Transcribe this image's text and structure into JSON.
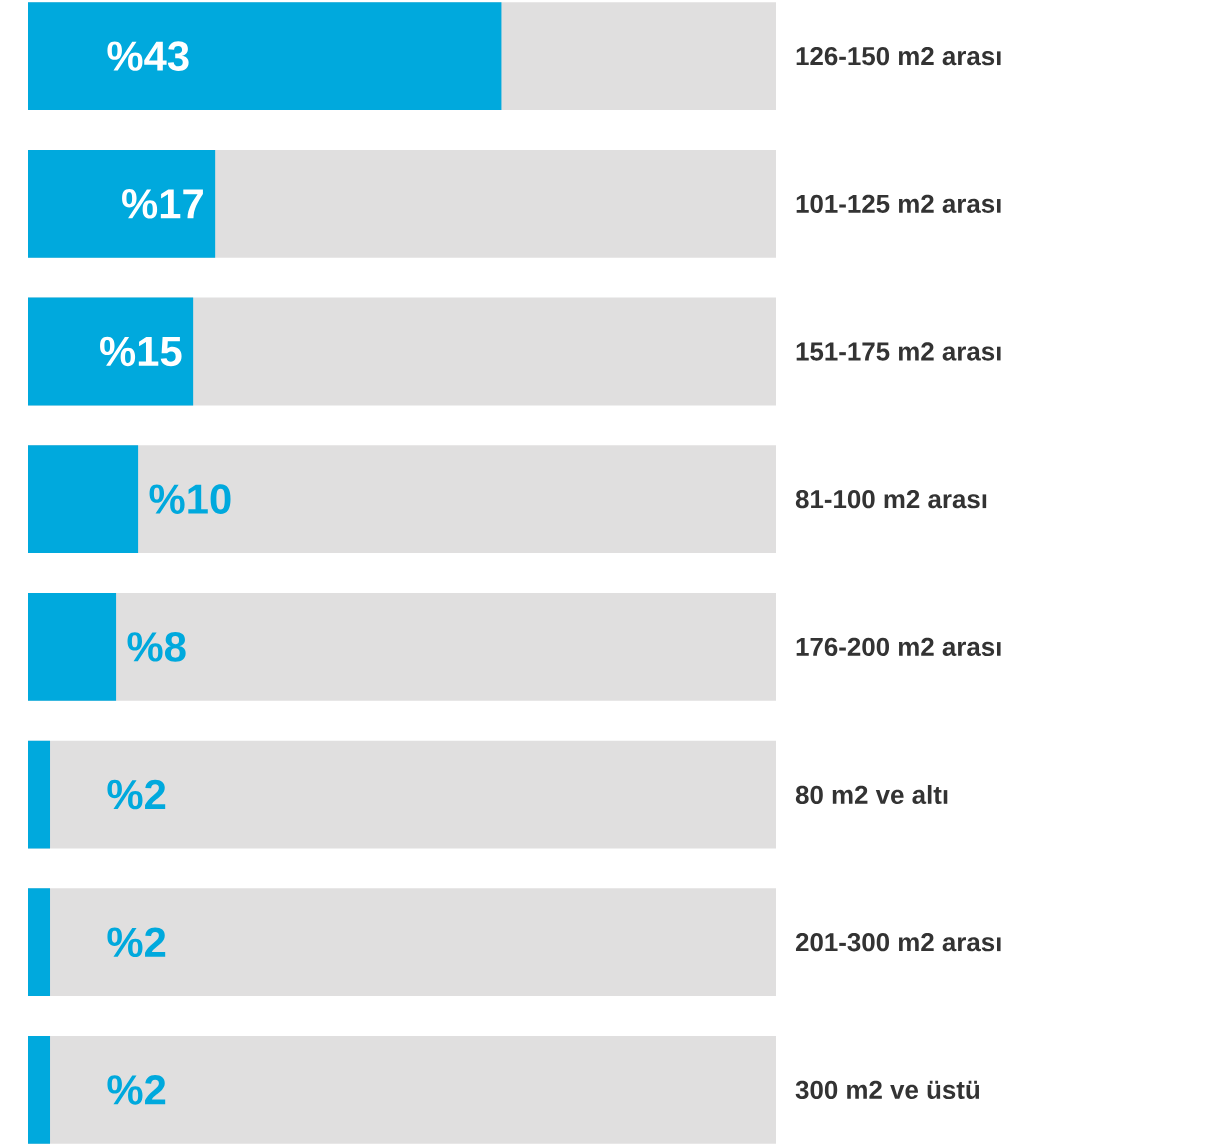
{
  "chart_data": {
    "type": "bar",
    "orientation": "horizontal",
    "categories": [
      "126-150 m2 arası",
      "101-125 m2 arası",
      "151-175 m2 arası",
      "81-100 m2 arası",
      "176-200 m2 arası",
      "80 m2 ve altı",
      "201-300 m2 arası",
      "300 m2 ve üstü"
    ],
    "values": [
      43,
      17,
      15,
      10,
      8,
      2,
      2,
      2
    ],
    "value_labels": [
      "%43",
      "%17",
      "%15",
      "%10",
      "%8",
      "%2",
      "%2",
      "%2"
    ],
    "color": "#00a9dd"
  }
}
